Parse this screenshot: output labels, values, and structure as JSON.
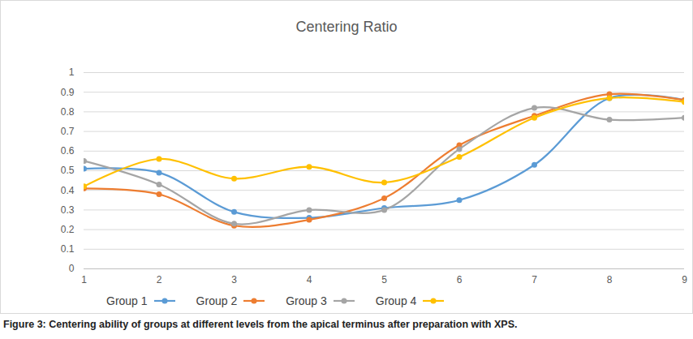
{
  "chart_data": {
    "type": "line",
    "title": "Centering Ratio",
    "caption": "Figure 3: Centering ability of groups at different levels from the apical terminus after preparation with XPS.",
    "x": [
      1,
      2,
      3,
      4,
      5,
      6,
      7,
      8,
      9
    ],
    "series": [
      {
        "name": "Group 1",
        "color": "#5b9bd5",
        "values": [
          0.51,
          0.49,
          0.29,
          0.26,
          0.31,
          0.35,
          0.53,
          0.87,
          0.86
        ]
      },
      {
        "name": "Group 2",
        "color": "#ed7d31",
        "values": [
          0.41,
          0.38,
          0.22,
          0.25,
          0.36,
          0.63,
          0.78,
          0.89,
          0.86
        ]
      },
      {
        "name": "Group 3",
        "color": "#a5a5a5",
        "values": [
          0.55,
          0.43,
          0.23,
          0.3,
          0.3,
          0.61,
          0.82,
          0.76,
          0.77
        ]
      },
      {
        "name": "Group 4",
        "color": "#ffc000",
        "values": [
          0.42,
          0.56,
          0.46,
          0.52,
          0.44,
          0.57,
          0.77,
          0.87,
          0.85
        ]
      }
    ],
    "xlim": [
      1,
      9
    ],
    "xticks": [
      1,
      2,
      3,
      4,
      5,
      6,
      7,
      8,
      9
    ],
    "ylim": [
      0,
      1
    ],
    "yticks": [
      0,
      0.1,
      0.2,
      0.3,
      0.4,
      0.5,
      0.6,
      0.7,
      0.8,
      0.9,
      1
    ],
    "grid": true,
    "legend": "bottom",
    "marker": "circle",
    "line_style": "solid"
  }
}
